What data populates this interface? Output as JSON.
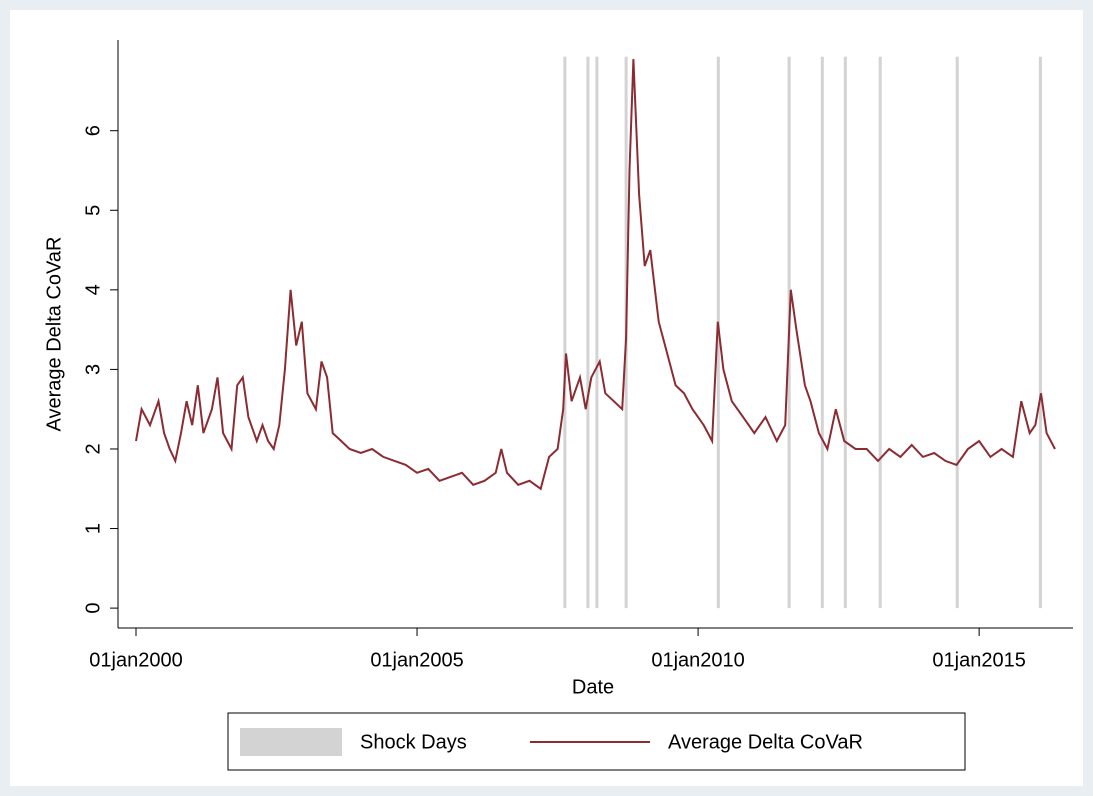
{
  "chart_data": {
    "type": "line",
    "x_label": "Date",
    "y_label": "Average Delta CoVaR",
    "xlim": [
      1999.68,
      2016.67
    ],
    "ylim": [
      -0.25,
      7.14
    ],
    "xticks": [
      {
        "value": 2000,
        "label": "01jan2000"
      },
      {
        "value": 2005,
        "label": "01jan2005"
      },
      {
        "value": 2010,
        "label": "01jan2010"
      },
      {
        "value": 2015,
        "label": "01jan2015"
      }
    ],
    "yticks": [
      0,
      1,
      2,
      3,
      4,
      5,
      6
    ],
    "grid": false,
    "legend": "bottom",
    "series": [
      {
        "name": "Shock Days",
        "type": "bar",
        "color": "#d3d3d3",
        "x": [
          2007.63,
          2008.04,
          2008.2,
          2008.72,
          2010.36,
          2011.62,
          2012.21,
          2012.62,
          2013.24,
          2014.61,
          2016.09
        ],
        "values": [
          6.93,
          6.93,
          6.93,
          6.93,
          6.93,
          6.93,
          6.93,
          6.93,
          6.93,
          6.93,
          6.93
        ]
      },
      {
        "name": "Average Delta CoVaR",
        "type": "line",
        "color": "#8b2c33",
        "x": [
          2000.0,
          2000.1,
          2000.25,
          2000.4,
          2000.5,
          2000.6,
          2000.7,
          2000.8,
          2000.9,
          2001.0,
          2001.1,
          2001.2,
          2001.35,
          2001.45,
          2001.55,
          2001.7,
          2001.8,
          2001.9,
          2002.0,
          2002.15,
          2002.25,
          2002.35,
          2002.45,
          2002.55,
          2002.65,
          2002.75,
          2002.85,
          2002.95,
          2003.05,
          2003.2,
          2003.3,
          2003.4,
          2003.5,
          2003.65,
          2003.8,
          2004.0,
          2004.2,
          2004.4,
          2004.6,
          2004.8,
          2005.0,
          2005.2,
          2005.4,
          2005.6,
          2005.8,
          2006.0,
          2006.2,
          2006.4,
          2006.5,
          2006.6,
          2006.8,
          2007.0,
          2007.2,
          2007.35,
          2007.5,
          2007.6,
          2007.65,
          2007.75,
          2007.9,
          2008.0,
          2008.1,
          2008.25,
          2008.35,
          2008.5,
          2008.65,
          2008.72,
          2008.78,
          2008.85,
          2008.95,
          2009.05,
          2009.15,
          2009.3,
          2009.45,
          2009.6,
          2009.75,
          2009.9,
          2010.1,
          2010.25,
          2010.35,
          2010.45,
          2010.6,
          2010.8,
          2011.0,
          2011.2,
          2011.4,
          2011.55,
          2011.65,
          2011.75,
          2011.9,
          2012.0,
          2012.15,
          2012.3,
          2012.45,
          2012.6,
          2012.8,
          2013.0,
          2013.2,
          2013.4,
          2013.6,
          2013.8,
          2014.0,
          2014.2,
          2014.4,
          2014.6,
          2014.8,
          2015.0,
          2015.2,
          2015.4,
          2015.6,
          2015.75,
          2015.9,
          2016.0,
          2016.1,
          2016.2,
          2016.35
        ],
        "values": [
          2.1,
          2.5,
          2.3,
          2.6,
          2.2,
          2.0,
          1.85,
          2.2,
          2.6,
          2.3,
          2.8,
          2.2,
          2.5,
          2.9,
          2.2,
          2.0,
          2.8,
          2.9,
          2.4,
          2.1,
          2.3,
          2.1,
          2.0,
          2.3,
          3.0,
          4.0,
          3.3,
          3.6,
          2.7,
          2.5,
          3.1,
          2.9,
          2.2,
          2.1,
          2.0,
          1.95,
          2.0,
          1.9,
          1.85,
          1.8,
          1.7,
          1.75,
          1.6,
          1.65,
          1.7,
          1.55,
          1.6,
          1.7,
          2.0,
          1.7,
          1.55,
          1.6,
          1.5,
          1.9,
          2.0,
          2.5,
          3.2,
          2.6,
          2.9,
          2.5,
          2.9,
          3.1,
          2.7,
          2.6,
          2.5,
          3.4,
          5.5,
          6.9,
          5.2,
          4.3,
          4.5,
          3.6,
          3.2,
          2.8,
          2.7,
          2.5,
          2.3,
          2.1,
          3.6,
          3.0,
          2.6,
          2.4,
          2.2,
          2.4,
          2.1,
          2.3,
          4.0,
          3.5,
          2.8,
          2.6,
          2.2,
          2.0,
          2.5,
          2.1,
          2.0,
          2.0,
          1.85,
          2.0,
          1.9,
          2.05,
          1.9,
          1.95,
          1.85,
          1.8,
          2.0,
          2.1,
          1.9,
          2.0,
          1.9,
          2.6,
          2.2,
          2.3,
          2.7,
          2.2,
          2.0
        ]
      }
    ]
  }
}
